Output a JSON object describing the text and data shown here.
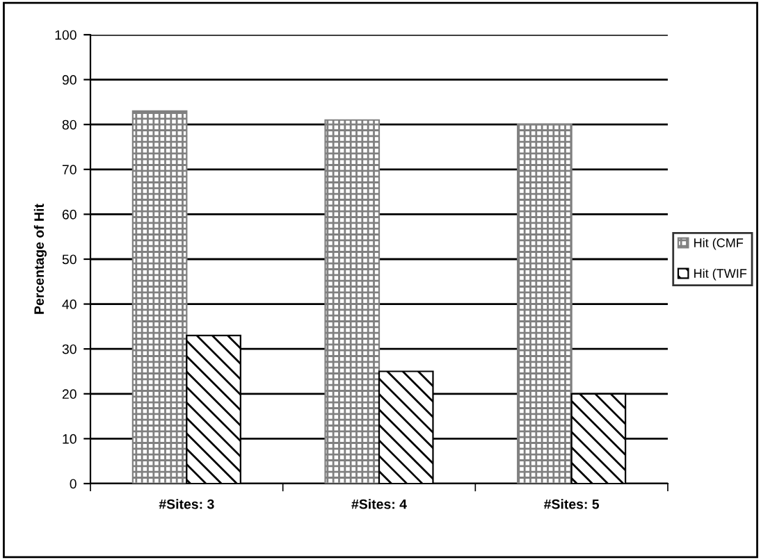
{
  "chart_data": {
    "type": "bar",
    "ylabel": "Percentage of Hit",
    "categories": [
      "#Sites: 3",
      "#Sites: 4",
      "#Sites: 5"
    ],
    "series": [
      {
        "name": "Hit (CMF",
        "color": "#808080",
        "values": [
          83,
          81,
          80
        ]
      },
      {
        "name": "Hit (TWIF",
        "color": "#000000",
        "values": [
          33,
          25,
          20
        ]
      }
    ],
    "ylim": [
      0,
      100
    ],
    "yticks": [
      0,
      10,
      20,
      30,
      40,
      50,
      60,
      70,
      80,
      90,
      100
    ],
    "grid": "y",
    "legend": "right"
  }
}
